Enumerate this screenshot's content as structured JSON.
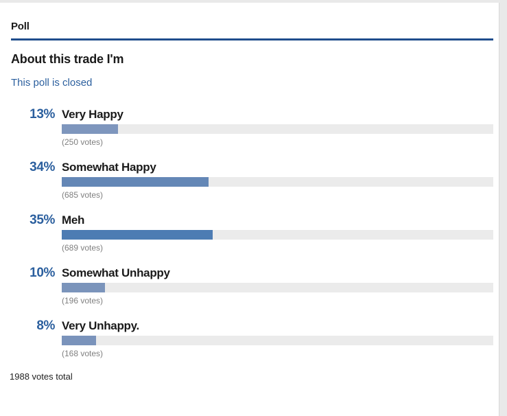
{
  "poll": {
    "section_title": "Poll",
    "question": "About this trade I'm",
    "status": "This poll is closed",
    "total_label": "1988 votes total",
    "options": [
      {
        "percent": "13%",
        "label": "Very Happy",
        "votes": "(250 votes)",
        "value": 13,
        "bar_color": "#7e96bd"
      },
      {
        "percent": "34%",
        "label": "Somewhat Happy",
        "votes": "(685 votes)",
        "value": 34,
        "bar_color": "#6487b6"
      },
      {
        "percent": "35%",
        "label": "Meh",
        "votes": "(689 votes)",
        "value": 35,
        "bar_color": "#4d7cb3"
      },
      {
        "percent": "10%",
        "label": "Somewhat Unhappy",
        "votes": "(196 votes)",
        "value": 10,
        "bar_color": "#7b94bb"
      },
      {
        "percent": "8%",
        "label": "Very Unhappy.",
        "votes": "(168 votes)",
        "value": 8,
        "bar_color": "#7a93bb"
      }
    ],
    "colors": {
      "rule_blue": "#1f4d8c",
      "accent_blue": "#2b5f9e",
      "track_gray": "#ebebeb",
      "votes_gray": "#7f7f7f"
    }
  },
  "chart_data": {
    "type": "bar",
    "orientation": "horizontal",
    "title": "About this trade I'm",
    "subtitle": "This poll is closed",
    "categories": [
      "Very Happy",
      "Somewhat Happy",
      "Meh",
      "Somewhat Unhappy",
      "Very Unhappy."
    ],
    "values": [
      13,
      34,
      35,
      10,
      8
    ],
    "vote_counts": [
      250,
      685,
      689,
      196,
      168
    ],
    "total_votes": 1988,
    "unit": "percent",
    "xlim": [
      0,
      100
    ],
    "grid": false,
    "legend": false
  }
}
